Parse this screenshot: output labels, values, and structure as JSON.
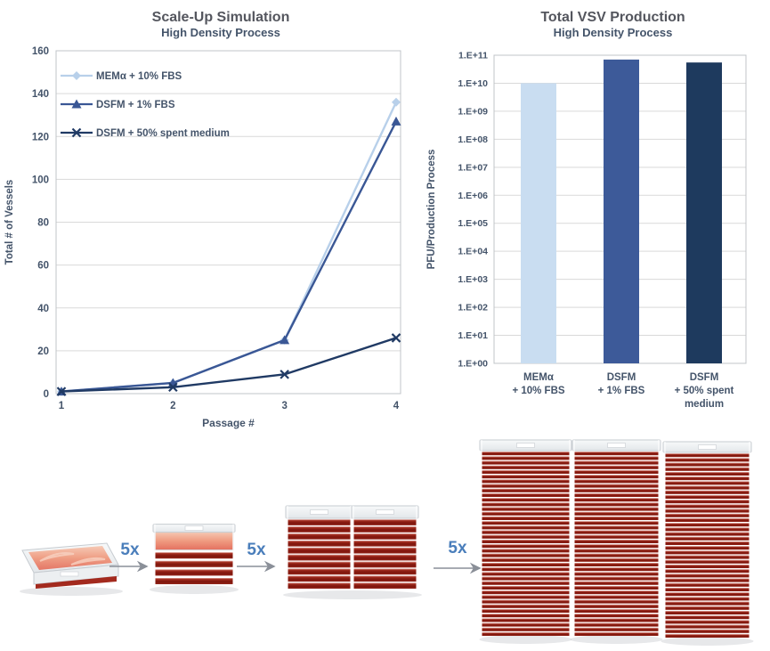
{
  "page": {
    "background": "#ffffff"
  },
  "chart_data": [
    {
      "type": "line",
      "title": "Scale-Up Simulation",
      "subtitle": "High Density Process",
      "xlabel": "Passage #",
      "ylabel": "Total # of Vessels",
      "x": [
        1,
        2,
        3,
        4
      ],
      "ylim": [
        0,
        160
      ],
      "ytick_step": 20,
      "grid": true,
      "legend_position": "top-left-inside",
      "series": [
        {
          "name": "MEMα + 10% FBS",
          "values": [
            1,
            5,
            25,
            136
          ],
          "color": "#b8d0ea",
          "marker": "diamond"
        },
        {
          "name": "DSFM + 1% FBS",
          "values": [
            1,
            5,
            25,
            127
          ],
          "color": "#3a5795",
          "marker": "triangle"
        },
        {
          "name": "DSFM + 50% spent medium",
          "values": [
            1,
            3,
            9,
            26
          ],
          "color": "#203a64",
          "marker": "x"
        }
      ],
      "colors": {
        "grid": "#d9d9d9",
        "border": "#c0c4c8",
        "tick_text": "#44546a"
      }
    },
    {
      "type": "bar",
      "title": "Total VSV Production",
      "subtitle": "High Density Process",
      "ylabel": "PFU/Production Process",
      "yscale": "log",
      "ylim": [
        1,
        100000000000.0
      ],
      "grid": true,
      "categories": [
        [
          "MEMα",
          "+ 10% FBS"
        ],
        [
          "DSFM",
          "+ 1% FBS"
        ],
        [
          "DSFM",
          "+ 50% spent",
          "medium"
        ]
      ],
      "values": [
        10000000000.0,
        70000000000.0,
        55000000000.0
      ],
      "bar_colors": [
        "#c9ddf1",
        "#3d5a99",
        "#1e3a5e"
      ],
      "ytick_labels": [
        "1.E+00",
        "1.E+01",
        "1.E+02",
        "1.E+03",
        "1.E+04",
        "1.E+05",
        "1.E+06",
        "1.E+07",
        "1.E+08",
        "1.E+09",
        "1.E+10",
        "1.E+11"
      ],
      "colors": {
        "grid": "#d9d9d9",
        "border": "#c0c4c8",
        "tick_text": "#44546a"
      }
    }
  ],
  "illustration": {
    "arrows": [
      "5x",
      "5x",
      "5x"
    ],
    "stages": [
      {
        "name": "single-layer-tray",
        "layers": 1,
        "count": 1
      },
      {
        "name": "five-layer-stack",
        "layers": 5,
        "count": 1
      },
      {
        "name": "ten-layer-stack-pair",
        "layers": 10,
        "count": 2
      },
      {
        "name": "forty-layer-towers",
        "layers": 40,
        "count": 3
      }
    ],
    "colors": {
      "medium_red": "#8e1c12",
      "surface_pink": "#ef9a7f",
      "lid": "#f0f3f5",
      "arrow": "#8a8f98",
      "arrow_label": "#4a7ebb"
    }
  }
}
